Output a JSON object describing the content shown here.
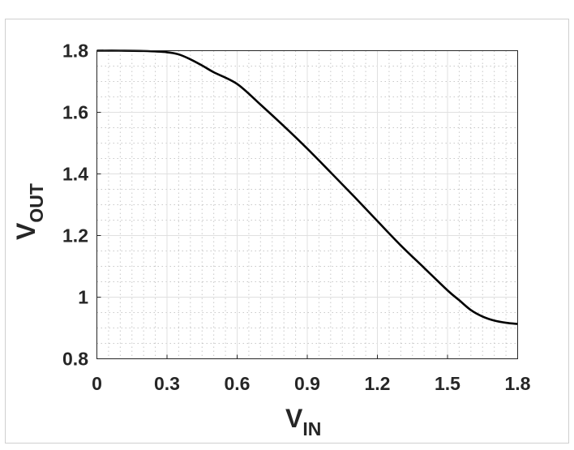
{
  "chart_data": {
    "type": "line",
    "title": "",
    "xlabel": {
      "main": "V",
      "sub": "IN"
    },
    "ylabel": {
      "main": "V",
      "sub": "OUT"
    },
    "xlim": [
      0,
      1.8
    ],
    "ylim": [
      0.8,
      1.8
    ],
    "xticks": [
      "0",
      "0.3",
      "0.6",
      "0.9",
      "1.2",
      "1.5",
      "1.8"
    ],
    "yticks": [
      "0.8",
      "1",
      "1.2",
      "1.4",
      "1.6",
      "1.8"
    ],
    "grid": "major solid, minor dotted",
    "line_color": "#000000",
    "series": [
      {
        "x": [
          0,
          0.1,
          0.2,
          0.3,
          0.35,
          0.4,
          0.45,
          0.5,
          0.6,
          0.7,
          0.8,
          0.9,
          1.0,
          1.1,
          1.2,
          1.3,
          1.4,
          1.5,
          1.55,
          1.6,
          1.65,
          1.7,
          1.75,
          1.8
        ],
        "y": [
          1.8,
          1.8,
          1.799,
          1.795,
          1.788,
          1.772,
          1.752,
          1.73,
          1.692,
          1.625,
          1.555,
          1.482,
          1.405,
          1.327,
          1.247,
          1.168,
          1.095,
          1.022,
          0.99,
          0.958,
          0.937,
          0.924,
          0.917,
          0.913
        ]
      }
    ]
  }
}
